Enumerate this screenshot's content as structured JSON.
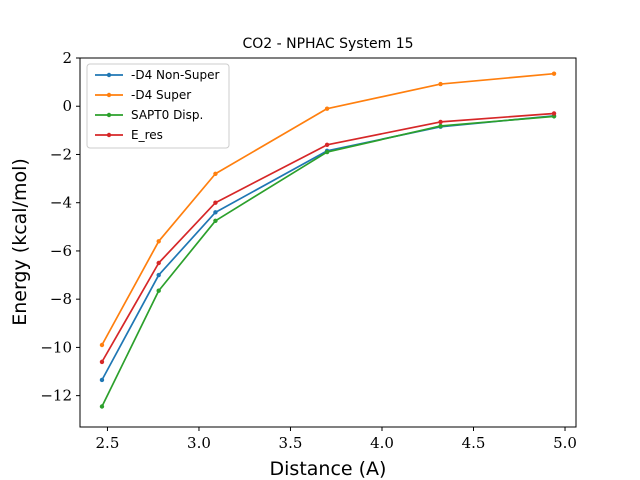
{
  "chart_data": {
    "type": "line",
    "title": "CO2 - NPHAC System 15",
    "xlabel": "Distance (A)",
    "ylabel": "Energy (kcal/mol)",
    "xlim": [
      2.35,
      5.06
    ],
    "ylim": [
      -13.3,
      2.0
    ],
    "xticks": [
      2.5,
      3.0,
      3.5,
      4.0,
      4.5,
      5.0
    ],
    "xtick_labels": [
      "2.5",
      "3.0",
      "3.5",
      "4.0",
      "4.5",
      "5.0"
    ],
    "yticks": [
      -12,
      -10,
      -8,
      -6,
      -4,
      -2,
      0,
      2
    ],
    "ytick_labels": [
      "−12",
      "−10",
      "−8",
      "−6",
      "−4",
      "−2",
      "0",
      "2"
    ],
    "legend_position": "top-left",
    "grid": false,
    "x": [
      2.47,
      2.78,
      3.09,
      3.7,
      4.32,
      4.94
    ],
    "series": [
      {
        "name": "-D4 Non-Super",
        "color": "#1f77b4",
        "values": [
          -11.35,
          -7.0,
          -4.4,
          -1.85,
          -0.85,
          -0.4
        ]
      },
      {
        "name": "-D4 Super",
        "color": "#ff7f0e",
        "values": [
          -9.9,
          -5.6,
          -2.8,
          -0.1,
          0.92,
          1.35
        ]
      },
      {
        "name": "SAPT0 Disp.",
        "color": "#2ca02c",
        "values": [
          -12.45,
          -7.65,
          -4.75,
          -1.9,
          -0.82,
          -0.42
        ]
      },
      {
        "name": "E_res",
        "color": "#d62728",
        "values": [
          -10.6,
          -6.5,
          -4.0,
          -1.6,
          -0.65,
          -0.3
        ]
      }
    ]
  }
}
